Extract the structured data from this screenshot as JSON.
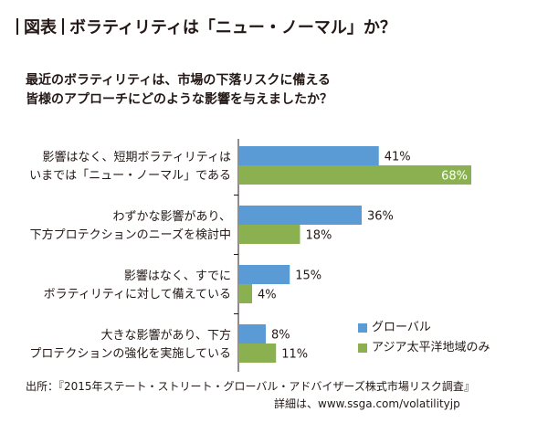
{
  "header": {
    "tag": "図表",
    "title": "ボラティリティは「ニュー・ノーマル」か？"
  },
  "question": {
    "line1": "最近のボラティリティは、市場の下落リスクに備える",
    "line2": "皆様のアプローチにどのような影響を与えましたか？"
  },
  "colors": {
    "global": "#5b9bd5",
    "apac": "#8ab04f",
    "text": "#231815",
    "axis": "#231815"
  },
  "chart_data": {
    "type": "bar",
    "orientation": "horizontal",
    "title": "最近のボラティリティは、市場の下落リスクに備える皆様のアプローチにどのような影響を与えましたか？",
    "categories": [
      [
        "影響はなく、短期ボラティリティは",
        "いまでは「ニュー・ノーマル」である"
      ],
      [
        "わずかな影響があり、",
        "下方プロテクションのニーズを検討中"
      ],
      [
        "影響はなく、すでに",
        "ボラティリティに対して備えている"
      ],
      [
        "大きな影響があり、下方",
        "プロテクションの強化を実施している"
      ]
    ],
    "series": [
      {
        "name": "グローバル",
        "values": [
          41,
          36,
          15,
          8
        ],
        "labels": [
          "41%",
          "36%",
          "15%",
          "8%"
        ]
      },
      {
        "name": "アジア太平洋地域のみ",
        "values": [
          68,
          18,
          4,
          11
        ],
        "labels": [
          "68%",
          "18%",
          "4%",
          "11%"
        ]
      }
    ],
    "unit": "%",
    "xlim": [
      0,
      68
    ],
    "legend_position": "bottom-right"
  },
  "footer": {
    "source": "出所：『2015年ステート・ストリート・グローバル・アドバイザーズ株式市場リスク調査』",
    "details": "詳細は、www.ssga.com/volatilityjp"
  }
}
